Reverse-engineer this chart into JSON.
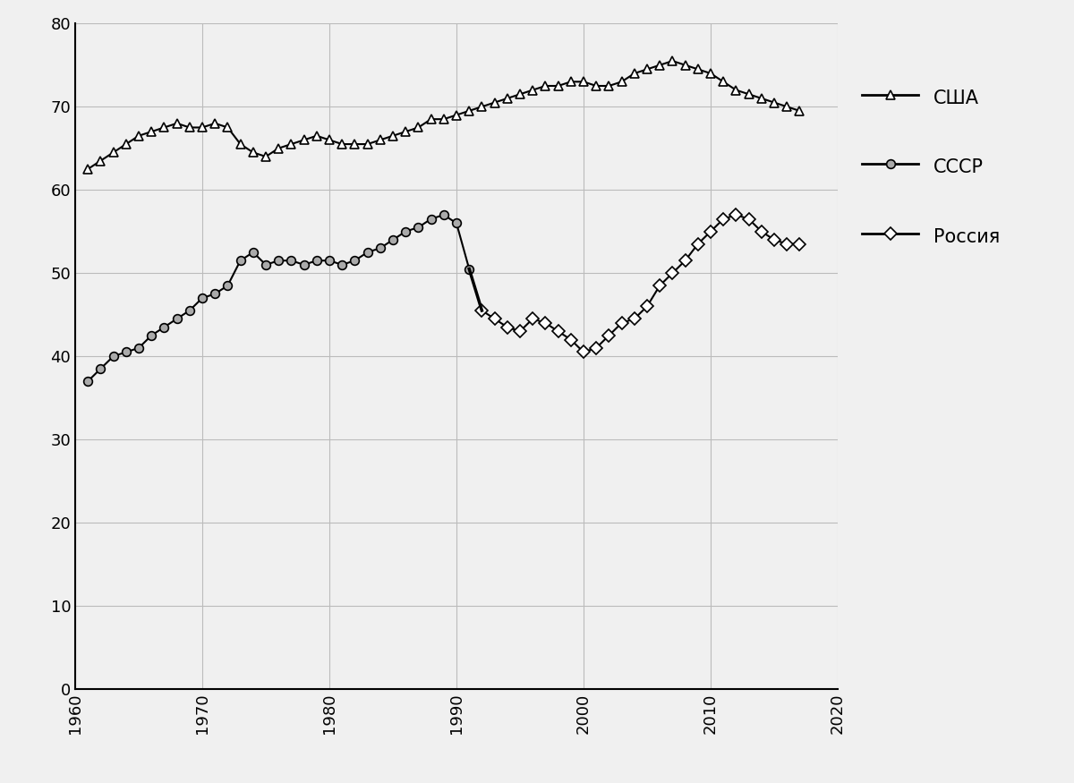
{
  "usa_data": {
    "years": [
      1961,
      1962,
      1963,
      1964,
      1965,
      1966,
      1967,
      1968,
      1969,
      1970,
      1971,
      1972,
      1973,
      1974,
      1975,
      1976,
      1977,
      1978,
      1979,
      1980,
      1981,
      1982,
      1983,
      1984,
      1985,
      1986,
      1987,
      1988,
      1989,
      1990,
      1991,
      1992,
      1993,
      1994,
      1995,
      1996,
      1997,
      1998,
      1999,
      2000,
      2001,
      2002,
      2003,
      2004,
      2005,
      2006,
      2007,
      2008,
      2009,
      2010,
      2011,
      2012,
      2013,
      2014,
      2015,
      2016,
      2017
    ],
    "values": [
      62.5,
      63.5,
      64.5,
      65.5,
      66.5,
      67.0,
      67.5,
      68.0,
      67.5,
      67.5,
      68.0,
      67.5,
      65.5,
      64.5,
      64.0,
      65.0,
      65.5,
      66.0,
      66.5,
      66.0,
      65.5,
      65.5,
      65.5,
      66.0,
      66.5,
      67.0,
      67.5,
      68.5,
      68.5,
      69.0,
      69.5,
      70.0,
      70.5,
      71.0,
      71.5,
      72.0,
      72.5,
      72.5,
      73.0,
      73.0,
      72.5,
      72.5,
      73.0,
      74.0,
      74.5,
      75.0,
      75.5,
      75.0,
      74.5,
      74.0,
      73.0,
      72.0,
      71.5,
      71.0,
      70.5,
      70.0,
      69.5
    ]
  },
  "ussr_data": {
    "years": [
      1961,
      1962,
      1963,
      1964,
      1965,
      1966,
      1967,
      1968,
      1969,
      1970,
      1971,
      1972,
      1973,
      1974,
      1975,
      1976,
      1977,
      1978,
      1979,
      1980,
      1981,
      1982,
      1983,
      1984,
      1985,
      1986,
      1987,
      1988,
      1989,
      1990,
      1991
    ],
    "values": [
      37.0,
      38.5,
      40.0,
      40.5,
      41.0,
      42.5,
      43.5,
      44.5,
      45.5,
      47.0,
      47.5,
      48.5,
      51.5,
      52.5,
      51.0,
      51.5,
      51.5,
      51.0,
      51.5,
      51.5,
      51.0,
      51.5,
      52.5,
      53.0,
      54.0,
      55.0,
      55.5,
      56.5,
      57.0,
      56.0,
      50.5
    ]
  },
  "russia_data": {
    "years": [
      1992,
      1993,
      1994,
      1995,
      1996,
      1997,
      1998,
      1999,
      2000,
      2001,
      2002,
      2003,
      2004,
      2005,
      2006,
      2007,
      2008,
      2009,
      2010,
      2011,
      2012,
      2013,
      2014,
      2015,
      2016,
      2017
    ],
    "values": [
      45.5,
      44.5,
      43.5,
      43.0,
      44.5,
      44.0,
      43.0,
      42.0,
      40.5,
      41.0,
      42.5,
      44.0,
      44.5,
      46.0,
      48.5,
      50.0,
      51.5,
      53.5,
      55.0,
      56.5,
      57.0,
      56.5,
      55.0,
      54.0,
      53.5,
      53.5
    ]
  },
  "xlim": [
    1960,
    2020
  ],
  "ylim": [
    0,
    80
  ],
  "yticks": [
    0,
    10,
    20,
    30,
    40,
    50,
    60,
    70,
    80
  ],
  "xticks": [
    1960,
    1970,
    1980,
    1990,
    2000,
    2010,
    2020
  ],
  "line_color": "#000000",
  "usa_marker": "^",
  "ussr_marker": "o",
  "russia_marker": "D",
  "ussr_marker_color": "#aaaaaa",
  "legend_labels": [
    "США",
    "СССР",
    "Россия"
  ],
  "background_color": "#f0f0f0",
  "plot_bg_color": "#f0f0f0",
  "grid_color": "#bbbbbb",
  "markersize": 7,
  "linewidth": 1.5,
  "tick_fontsize": 13,
  "legend_fontsize": 15
}
